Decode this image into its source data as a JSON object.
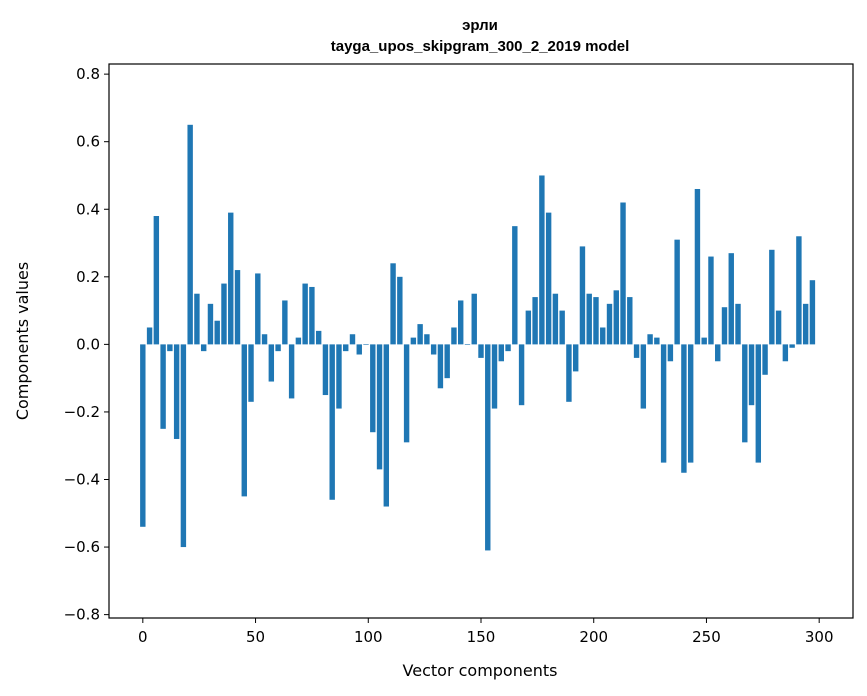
{
  "chart_data": {
    "type": "bar",
    "title": "эрли",
    "subtitle": "tayga_upos_skipgram_300_2_2019 model",
    "xlabel": "Vector components",
    "ylabel": "Components values",
    "xlim": [
      -15,
      315
    ],
    "ylim": [
      -0.81,
      0.83
    ],
    "xticks": [
      0,
      50,
      100,
      150,
      200,
      250,
      300
    ],
    "xtick_labels": [
      "0",
      "50",
      "100",
      "150",
      "200",
      "250",
      "300"
    ],
    "yticks": [
      -0.8,
      -0.6,
      -0.4,
      -0.2,
      0.0,
      0.2,
      0.4,
      0.6,
      0.8
    ],
    "ytick_labels": [
      "−0.8",
      "−0.6",
      "−0.4",
      "−0.2",
      "0.0",
      "0.2",
      "0.4",
      "0.6",
      "0.8"
    ],
    "bar_color": "#1f77b4",
    "grid": false,
    "values": [
      -0.54,
      0.05,
      0.38,
      -0.25,
      -0.02,
      -0.28,
      -0.6,
      0.65,
      0.15,
      -0.02,
      0.12,
      0.07,
      0.18,
      0.39,
      0.22,
      -0.45,
      -0.17,
      0.21,
      0.03,
      -0.11,
      -0.02,
      0.13,
      -0.16,
      0.02,
      0.18,
      0.17,
      0.04,
      -0.15,
      -0.46,
      -0.19,
      -0.02,
      0.03,
      -0.03,
      0.0,
      -0.26,
      -0.37,
      -0.48,
      0.24,
      0.2,
      -0.29,
      0.02,
      0.06,
      0.03,
      -0.03,
      -0.13,
      -0.1,
      0.05,
      0.13,
      0.0,
      0.15,
      -0.04,
      -0.61,
      -0.19,
      -0.05,
      -0.02,
      0.35,
      -0.18,
      0.1,
      0.14,
      0.5,
      0.39,
      0.15,
      0.1,
      -0.17,
      -0.08,
      0.29,
      0.15,
      0.14,
      0.05,
      0.12,
      0.16,
      0.42,
      0.14,
      -0.04,
      -0.19,
      0.03,
      0.02,
      -0.35,
      -0.05,
      0.31,
      -0.38,
      -0.35,
      0.46,
      0.02,
      0.26,
      -0.05,
      0.11,
      0.27,
      0.12,
      -0.29,
      -0.18,
      -0.35,
      -0.09,
      0.28,
      0.1,
      -0.05,
      -0.01,
      0.32,
      0.12,
      0.19
    ]
  }
}
